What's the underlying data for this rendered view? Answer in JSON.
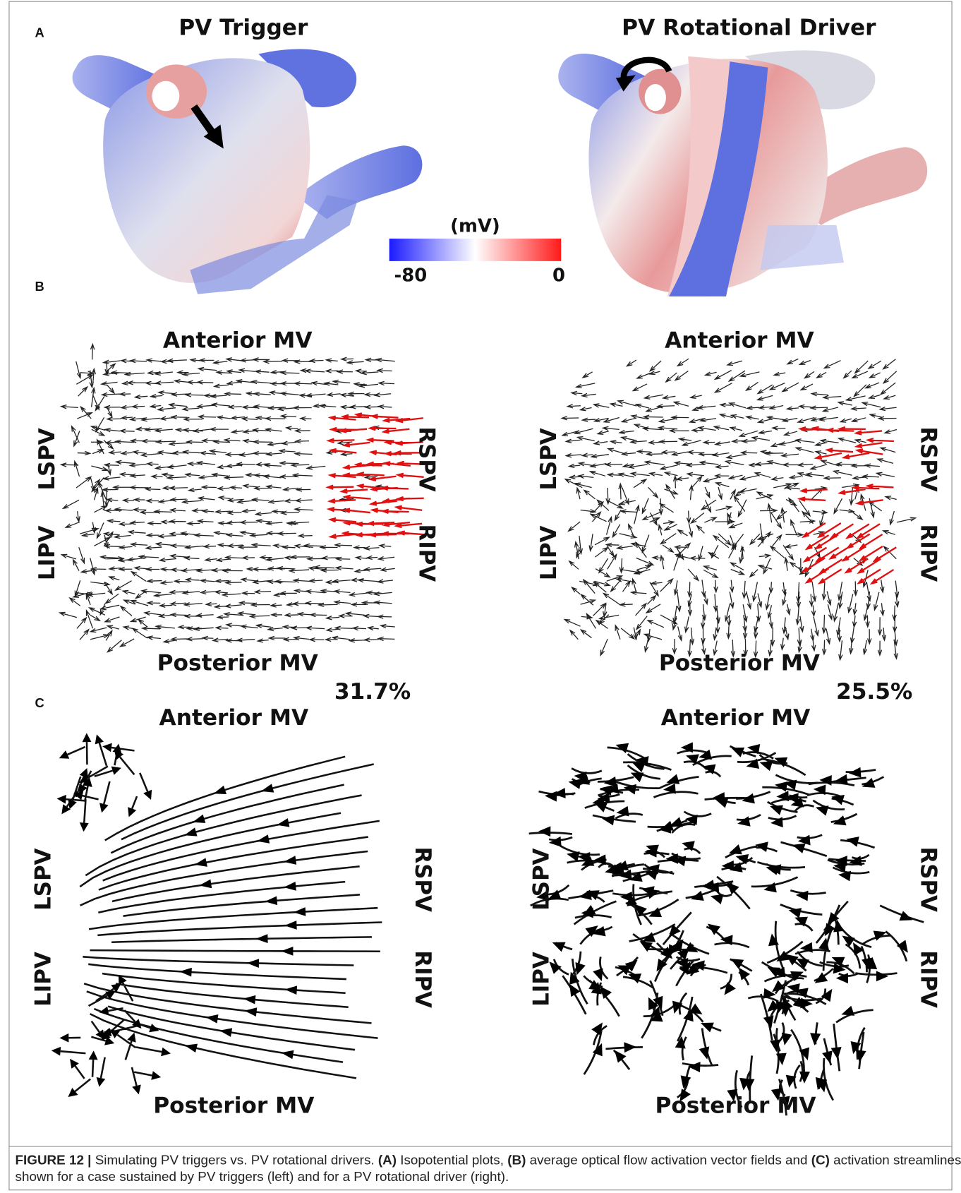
{
  "panel_a": {
    "label": "A",
    "left_title": "PV Trigger",
    "right_title": "PV Rotational Driver",
    "colorbar": {
      "unit": "(mV)",
      "min_label": "-80",
      "max_label": "0"
    }
  },
  "panel_b": {
    "label": "B",
    "left": {
      "top": "Anterior MV",
      "bottom": "Posterior MV",
      "left_upper": "LSPV",
      "left_lower": "LIPV",
      "right_upper": "RSPV",
      "right_lower": "RIPV",
      "percent": "31.7%"
    },
    "right": {
      "top": "Anterior MV",
      "bottom": "Posterior MV",
      "left_upper": "LSPV",
      "left_lower": "LIPV",
      "right_upper": "RSPV",
      "right_lower": "RIPV",
      "percent": "25.5%"
    }
  },
  "panel_c": {
    "label": "C",
    "left": {
      "top": "Anterior MV",
      "bottom": "Posterior MV",
      "left_upper": "LSPV",
      "left_lower": "LIPV",
      "right_upper": "RSPV",
      "right_lower": "RIPV"
    },
    "right": {
      "top": "Anterior MV",
      "bottom": "Posterior MV",
      "left_upper": "LSPV",
      "left_lower": "LIPV",
      "right_upper": "RSPV",
      "right_lower": "RIPV"
    }
  },
  "caption": {
    "figure": "FIGURE 12 |",
    "text_1": " Simulating PV triggers vs. PV rotational drivers. ",
    "a": "(A)",
    "text_2": " Isopotential plots, ",
    "b": "(B)",
    "text_3": " average optical flow activation vector fields and ",
    "c": "(C)",
    "text_4": " activation streamlines are",
    "text_5": "shown for a case sustained by PV triggers (left) and for a PV rotational driver (right)."
  }
}
